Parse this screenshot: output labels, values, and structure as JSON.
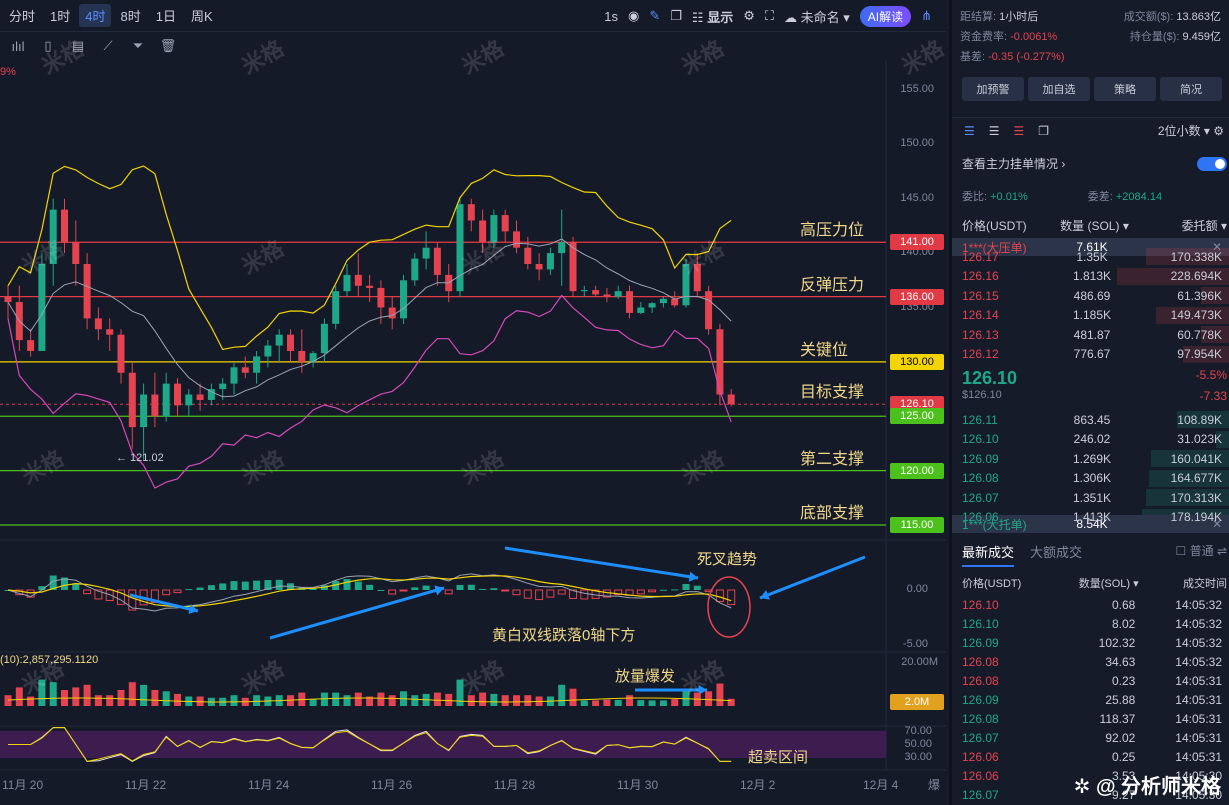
{
  "topbar": {
    "timeframes": [
      "分时",
      "1时",
      "4时",
      "8时",
      "1日",
      "周K"
    ],
    "active_timeframe": "4时",
    "interval_label": "1s",
    "display_label": "显示",
    "layout_name": "未命名",
    "ai_label": "AI解读"
  },
  "chart": {
    "price_ticks": [
      "155.00",
      "150.00",
      "145.00",
      "140.00",
      "135.00",
      "130.00",
      "125.00",
      "120.00",
      "115.00"
    ],
    "current_price_badge": "126.10",
    "min_marker": "← 121.02",
    "corner_label": "9%",
    "levels": [
      {
        "price": 141,
        "label": "高压力位",
        "badge": "141.00",
        "color": "#e23a45"
      },
      {
        "price": 136,
        "label": "反弹压力",
        "badge": "136.00",
        "color": "#e23a45"
      },
      {
        "price": 130,
        "label": "关键位",
        "badge": "130.00",
        "color": "#f2d400"
      },
      {
        "price": 126.1,
        "label": "目标支撑",
        "badge": "126.10",
        "color": "#e23a45"
      },
      {
        "price": 125,
        "label": "",
        "badge": "125.00",
        "color": "#4cc11b"
      },
      {
        "price": 120,
        "label": "第二支撑",
        "badge": "120.00",
        "color": "#4cc11b"
      },
      {
        "price": 115,
        "label": "底部支撑",
        "badge": "115.00",
        "color": "#4cc11b"
      }
    ],
    "macd_ticks": [
      "0.00",
      "-5.00"
    ],
    "vol_label": "(10):2,857,295.1120",
    "vol_ticks": [
      "20.00M"
    ],
    "vol_badge": "2.0M",
    "rsi_ticks": [
      "70.00",
      "50.00",
      "30.00"
    ],
    "x_labels": [
      "11月 20",
      "11月 22",
      "11月 24",
      "11月 26",
      "11月 28",
      "11月 30",
      "12月 2",
      "12月 4"
    ],
    "corner_x": "爆",
    "annotations": {
      "death_cross": "死叉趋势",
      "macd_note": "黄白双线跌落0轴下方",
      "volume_note": "放量爆发",
      "oversold": "超卖区间"
    },
    "watermark": "米格"
  },
  "chart_data": {
    "type": "candlestick",
    "price_ylim": [
      112,
      157
    ],
    "candles_ohlc": [
      [
        136,
        137,
        134,
        135.5
      ],
      [
        135.5,
        137,
        131,
        132
      ],
      [
        132,
        133,
        130.5,
        131
      ],
      [
        131,
        140,
        131,
        139
      ],
      [
        139,
        145,
        137,
        144
      ],
      [
        144,
        145,
        140,
        141
      ],
      [
        141,
        143,
        137,
        139
      ],
      [
        139,
        140,
        133,
        134
      ],
      [
        134,
        135,
        132,
        133
      ],
      [
        133,
        134,
        131,
        132.5
      ],
      [
        132.5,
        133,
        128,
        129
      ],
      [
        129,
        130,
        122,
        124
      ],
      [
        124,
        128,
        121.02,
        127
      ],
      [
        127,
        129,
        124,
        125
      ],
      [
        125,
        129,
        124.5,
        128
      ],
      [
        128,
        128.5,
        125,
        126
      ],
      [
        126,
        127.5,
        125,
        127
      ],
      [
        127,
        128,
        125.5,
        126.5
      ],
      [
        126.5,
        128,
        126,
        127.5
      ],
      [
        127.5,
        128.5,
        126.5,
        128
      ],
      [
        128,
        130,
        127,
        129.5
      ],
      [
        129.5,
        130.5,
        128.5,
        129
      ],
      [
        129,
        131,
        128,
        130.5
      ],
      [
        130.5,
        132,
        129.5,
        131.5
      ],
      [
        131.5,
        133,
        130,
        132.5
      ],
      [
        132.5,
        133,
        130,
        131
      ],
      [
        131,
        133,
        129,
        130
      ],
      [
        130,
        131,
        129.5,
        130.8
      ],
      [
        130.8,
        134,
        130,
        133.5
      ],
      [
        133.5,
        137,
        133,
        136.5
      ],
      [
        136.5,
        139,
        136,
        138
      ],
      [
        138,
        140,
        136,
        137
      ],
      [
        137,
        138,
        135.5,
        136.8
      ],
      [
        136.8,
        137.5,
        133.5,
        135
      ],
      [
        135,
        136,
        133,
        134
      ],
      [
        134,
        138,
        133.5,
        137.5
      ],
      [
        137.5,
        140,
        137,
        139.5
      ],
      [
        139.5,
        142,
        138.5,
        140.5
      ],
      [
        140.5,
        141,
        137,
        138
      ],
      [
        138,
        139,
        135.5,
        136.5
      ],
      [
        136.5,
        145,
        136,
        144.5
      ],
      [
        144.5,
        145,
        142,
        143
      ],
      [
        143,
        144,
        140,
        141
      ],
      [
        141,
        144,
        140.5,
        143.5
      ],
      [
        143.5,
        144,
        141,
        142
      ],
      [
        142,
        143,
        140,
        140.5
      ],
      [
        140.5,
        141.5,
        138.5,
        139
      ],
      [
        139,
        140,
        137.5,
        138.5
      ],
      [
        138.5,
        140.5,
        138,
        140
      ],
      [
        140,
        144,
        137,
        141
      ],
      [
        141,
        141.5,
        136,
        136.5
      ],
      [
        136.5,
        137,
        136,
        136.6
      ],
      [
        136.6,
        137,
        136,
        136.2
      ],
      [
        136.2,
        136.8,
        135.5,
        136
      ],
      [
        136,
        137,
        135.8,
        136.5
      ],
      [
        136.5,
        137,
        134,
        134.5
      ],
      [
        134.5,
        135.5,
        134.4,
        135
      ],
      [
        135,
        135.5,
        134.5,
        135.4
      ],
      [
        135.4,
        136,
        135,
        135.8
      ],
      [
        135.8,
        136.5,
        135,
        135.2
      ],
      [
        135.2,
        139.5,
        135,
        139
      ],
      [
        139,
        140,
        136,
        136.5
      ],
      [
        136.5,
        137,
        132.5,
        133
      ],
      [
        133,
        133.5,
        126,
        127
      ],
      [
        127,
        127.5,
        125.9,
        126.1
      ]
    ]
  },
  "right_panel": {
    "info": {
      "settle_label": "距结算:",
      "settle_value": "1小时后",
      "turnover_label": "成交额($):",
      "turnover_value": "13.863亿",
      "funding_label": "资金费率:",
      "funding_value": "-0.0061%",
      "oi_label": "持仓量($):",
      "oi_value": "9.459亿",
      "basis_label": "基差:",
      "basis_value": "-0.35 (-0.277%)"
    },
    "actions": [
      "加预警",
      "加自选",
      "策略",
      "简况"
    ],
    "precision": "2位小数",
    "main_orders_label": "查看主力挂单情况",
    "ratio_label": "委比:",
    "ratio_value": "+0.01%",
    "diff_label": "委差:",
    "diff_value": "+2084.14",
    "ob_headers": [
      "价格(USDT)",
      "数量 (SOL)",
      "委托额"
    ],
    "big_ask": {
      "label": "1***(大压单)",
      "qty": "7.61K"
    },
    "asks": [
      {
        "price": "126.17",
        "qty": "1.35K",
        "amount": "170.338K",
        "frac": 0.75
      },
      {
        "price": "126.16",
        "qty": "1.813K",
        "amount": "228.694K",
        "frac": 1.0
      },
      {
        "price": "126.15",
        "qty": "486.69",
        "amount": "61.396K",
        "frac": 0.27
      },
      {
        "price": "126.14",
        "qty": "1.185K",
        "amount": "149.473K",
        "frac": 0.66
      },
      {
        "price": "126.13",
        "qty": "481.87",
        "amount": "60.778K",
        "frac": 0.27
      },
      {
        "price": "126.12",
        "qty": "776.67",
        "amount": "97.954K",
        "frac": 0.43
      }
    ],
    "last_price": "126.10",
    "last_usd": "$126.10",
    "change_pct": "-5.5%",
    "change_abs": "-7.33",
    "bids": [
      {
        "price": "126.11",
        "qty": "863.45",
        "amount": "108.89K",
        "frac": 0.48
      },
      {
        "price": "126.10",
        "qty": "246.02",
        "amount": "31.023K",
        "frac": 0.14
      },
      {
        "price": "126.09",
        "qty": "1.269K",
        "amount": "160.041K",
        "frac": 0.7
      },
      {
        "price": "126.08",
        "qty": "1.306K",
        "amount": "164.677K",
        "frac": 0.72
      },
      {
        "price": "126.07",
        "qty": "1.351K",
        "amount": "170.313K",
        "frac": 0.75
      },
      {
        "price": "126.06",
        "qty": "1.413K",
        "amount": "178.194K",
        "frac": 0.78
      }
    ],
    "big_bid": {
      "label": "1***(大托单)",
      "qty": "8.54K"
    },
    "trades_tabs": [
      "最新成交",
      "大额成交"
    ],
    "normal_label": "普通",
    "trades_headers": [
      "价格(USDT)",
      "数量(SOL)",
      "成交时间"
    ],
    "trades": [
      {
        "price": "126.10",
        "qty": "0.68",
        "time": "14:05:32",
        "side": "sell"
      },
      {
        "price": "126.10",
        "qty": "8.02",
        "time": "14:05:32",
        "side": "buy"
      },
      {
        "price": "126.09",
        "qty": "102.32",
        "time": "14:05:32",
        "side": "buy"
      },
      {
        "price": "126.08",
        "qty": "34.63",
        "time": "14:05:32",
        "side": "sell"
      },
      {
        "price": "126.08",
        "qty": "0.23",
        "time": "14:05:31",
        "side": "sell"
      },
      {
        "price": "126.09",
        "qty": "25.88",
        "time": "14:05:31",
        "side": "buy"
      },
      {
        "price": "126.08",
        "qty": "118.37",
        "time": "14:05:31",
        "side": "buy"
      },
      {
        "price": "126.07",
        "qty": "92.02",
        "time": "14:05:31",
        "side": "buy"
      },
      {
        "price": "126.06",
        "qty": "0.25",
        "time": "14:05:31",
        "side": "sell"
      },
      {
        "price": "126.06",
        "qty": "3.53",
        "time": "14:05:30",
        "side": "sell"
      },
      {
        "price": "126.07",
        "qty": "9.27",
        "time": "14:05:30",
        "side": "buy"
      }
    ],
    "brand": "分析师米格"
  },
  "colors": {
    "up": "#1ea88a",
    "down": "#e5434f",
    "accent": "#2e74f5",
    "yellow": "#f2d400",
    "green": "#4cc11b",
    "red": "#e23a45"
  }
}
